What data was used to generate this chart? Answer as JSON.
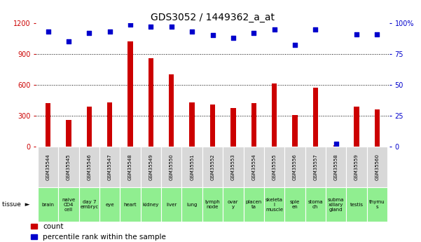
{
  "title": "GDS3052 / 1449362_a_at",
  "samples": [
    "GSM35544",
    "GSM35545",
    "GSM35546",
    "GSM35547",
    "GSM35548",
    "GSM35549",
    "GSM35550",
    "GSM35551",
    "GSM35552",
    "GSM35553",
    "GSM35554",
    "GSM35555",
    "GSM35556",
    "GSM35557",
    "GSM35558",
    "GSM35559",
    "GSM35560"
  ],
  "counts": [
    420,
    255,
    390,
    430,
    1020,
    860,
    700,
    430,
    410,
    370,
    420,
    610,
    305,
    570,
    15,
    390,
    360
  ],
  "percentiles": [
    93,
    85,
    92,
    93,
    99,
    97,
    97,
    93,
    90,
    88,
    92,
    95,
    82,
    95,
    2,
    91,
    91
  ],
  "tissues": [
    "brain",
    "naive\nCD4\ncell",
    "day 7\nembryc",
    "eye",
    "heart",
    "kidney",
    "liver",
    "lung",
    "lymph\nnode",
    "ovar\ny",
    "placen\nta",
    "skeleta\nl\nmuscle",
    "sple\nen",
    "stoma\nch",
    "subma\nxillary\ngland",
    "testis",
    "thymu\ns"
  ],
  "bar_color": "#cc0000",
  "dot_color": "#0000cc",
  "ylim_left": [
    0,
    1200
  ],
  "ylim_right": [
    0,
    100
  ],
  "yticks_left": [
    0,
    300,
    600,
    900,
    1200
  ],
  "yticks_right": [
    0,
    25,
    50,
    75,
    100
  ],
  "bg_color": "#ffffff",
  "grid_color": "#000000",
  "left_tick_color": "#cc0000",
  "right_tick_color": "#0000cc",
  "gsm_cell_color": "#d8d8d8",
  "tissue_cell_color": "#90ee90",
  "title_fontsize": 10,
  "tick_fontsize": 7,
  "gsm_fontsize": 5,
  "tissue_fontsize": 5,
  "legend_fontsize": 7.5,
  "bar_width": 0.25
}
